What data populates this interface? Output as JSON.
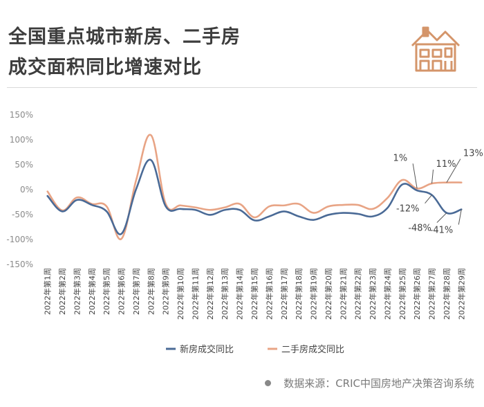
{
  "title": {
    "line1": "全国重点城市新房、二手房",
    "line2": "成交面积同比增速对比"
  },
  "icon": "house-icon",
  "colors": {
    "new_house": "#4a6a96",
    "second_hand": "#e8a485",
    "axis_text": "#8a8a8a",
    "logo": "#d4956a"
  },
  "source": "数据来源：CRIC中国房地产决策咨询系统",
  "chart_data": {
    "type": "line",
    "ylim": [
      -150,
      150
    ],
    "yticks": [
      "150%",
      "100%",
      "50%",
      "0%",
      "-50%",
      "-100%",
      "-150%"
    ],
    "ytick_values": [
      150,
      100,
      50,
      0,
      -50,
      -100,
      -150
    ],
    "categories": [
      "2022年第1周",
      "2022年第2周",
      "2022年第3周",
      "2022年第4周",
      "2022年第5周",
      "2022年第6周",
      "2022年第7周",
      "2022年第8周",
      "2022年第9周",
      "2022年第10周",
      "2022年第11周",
      "2022年第12周",
      "2022年第13周",
      "2022年第14周",
      "2022年第15周",
      "2022年第16周",
      "2022年第17周",
      "2022年第18周",
      "2022年第19周",
      "2022年第20周",
      "2022年第21周",
      "2022年第22周",
      "2022年第23周",
      "2022年第24周",
      "2022年第25周",
      "2022年第26周",
      "2022年第27周",
      "2022年第28周",
      "2022年第29周"
    ],
    "series": [
      {
        "name": "新房成交同比",
        "values": [
          -14,
          -45,
          -22,
          -32,
          -45,
          -90,
          0,
          58,
          -35,
          -40,
          -42,
          -52,
          -42,
          -42,
          -63,
          -55,
          -45,
          -55,
          -62,
          -52,
          -48,
          -50,
          -55,
          -38,
          9,
          -3,
          -12,
          -48,
          -41
        ]
      },
      {
        "name": "二手房成交同比",
        "values": [
          -5,
          -43,
          -17,
          -30,
          -35,
          -100,
          18,
          108,
          -30,
          -33,
          -37,
          -42,
          -37,
          -30,
          -57,
          -35,
          -33,
          -30,
          -48,
          -35,
          -32,
          -32,
          -40,
          -18,
          18,
          1,
          11,
          13,
          13
        ]
      }
    ],
    "annotations": [
      {
        "text": "1%",
        "series": 1,
        "index": 25
      },
      {
        "text": "11%",
        "series": 1,
        "index": 26
      },
      {
        "text": "13%",
        "series": 1,
        "index": 27
      },
      {
        "text": "-12%",
        "series": 0,
        "index": 26
      },
      {
        "text": "-48%",
        "series": 0,
        "index": 27
      },
      {
        "text": "-41%",
        "series": 0,
        "index": 28
      }
    ],
    "legend": "bottom-center"
  }
}
